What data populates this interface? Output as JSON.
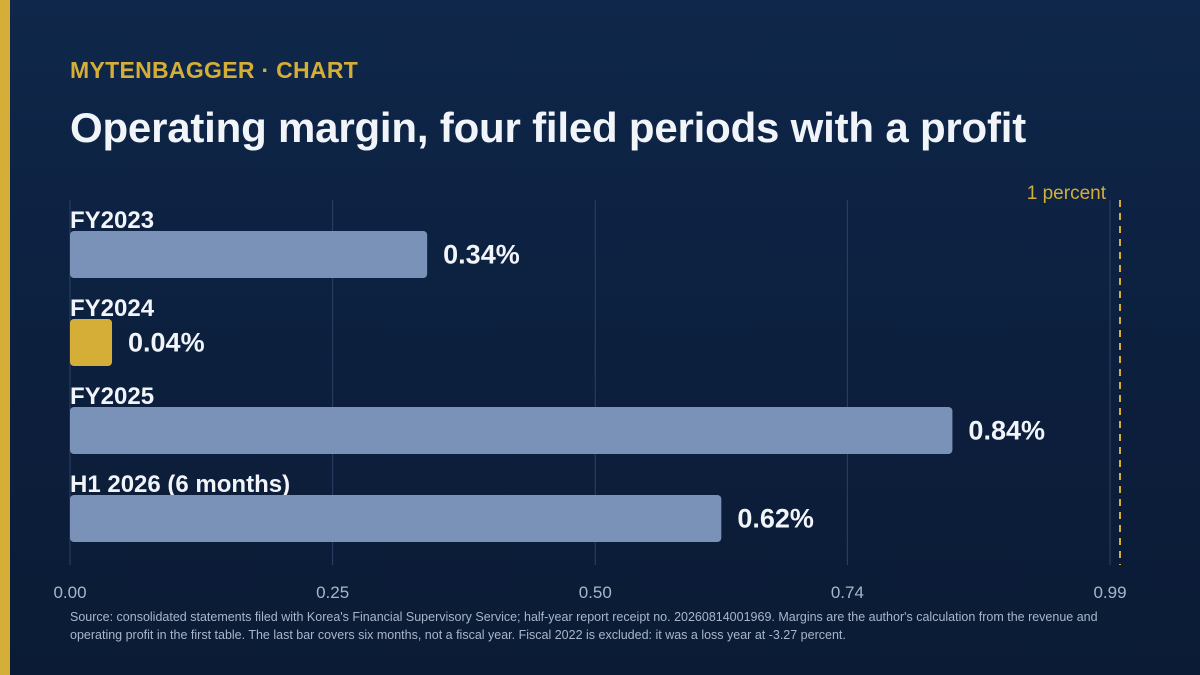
{
  "header": {
    "kicker": "MYTENBAGGER · CHART",
    "title": "Operating margin, four filed periods with a profit"
  },
  "colors": {
    "background": "#0c1f3d",
    "accent": "#d4ae36",
    "bar": "#7a92b8",
    "highlight_bar": "#d4ae36",
    "gridline": "#2a4266",
    "text": "#f1f4f9",
    "muted_text": "#a9b6ca"
  },
  "chart_data": {
    "type": "bar",
    "orientation": "horizontal",
    "categories": [
      "FY2023",
      "FY2024",
      "FY2025",
      "H1 2026 (6 months)"
    ],
    "values": [
      0.34,
      0.04,
      0.84,
      0.62
    ],
    "value_labels": [
      "0.34%",
      "0.04%",
      "0.84%",
      "0.62%"
    ],
    "highlight_index": 1,
    "xlim": [
      0,
      0.99
    ],
    "x_ticks": [
      0,
      0.25,
      0.5,
      0.74,
      0.99
    ],
    "x_tick_labels": [
      "0.00",
      "0.25",
      "0.50",
      "0.74",
      "0.99"
    ],
    "grid": true,
    "reference_line": {
      "value": 1,
      "label": "1 percent"
    }
  },
  "source_note": "Source: consolidated statements filed with Korea's Financial Supervisory Service; half-year report receipt no. 20260814001969. Margins are the author's calculation from the revenue and operating profit in the first table. The last bar covers six months, not a fiscal year. Fiscal 2022 is excluded: it was a loss year at -3.27 percent."
}
